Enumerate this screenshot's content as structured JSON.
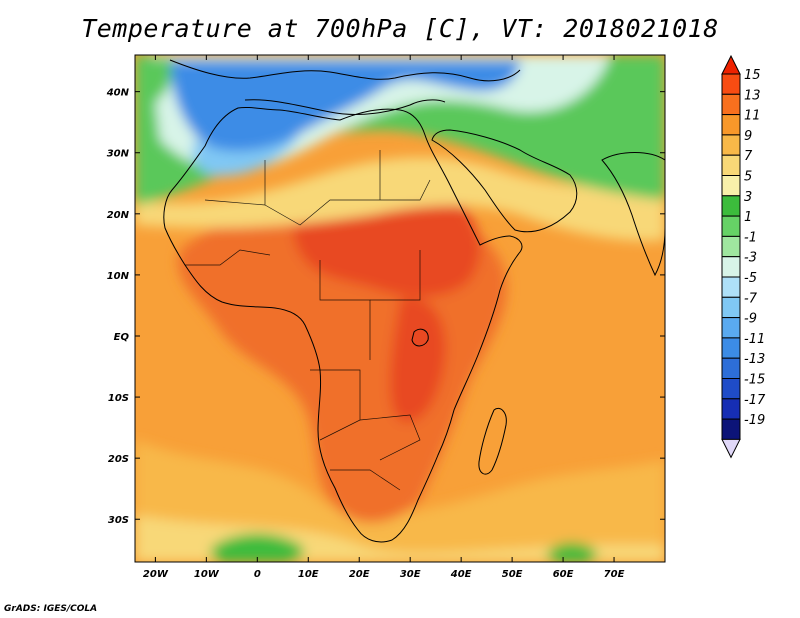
{
  "title": "Temperature at 700hPa [C], VT: 2018021018",
  "footer": "GrADS: IGES/COLA",
  "map": {
    "lon_range": [
      -24,
      80
    ],
    "lat_range": [
      -37,
      46
    ]
  },
  "axes": {
    "x_ticks": [
      {
        "value": -20,
        "label": "20W"
      },
      {
        "value": -10,
        "label": "10W"
      },
      {
        "value": 0,
        "label": "0"
      },
      {
        "value": 10,
        "label": "10E"
      },
      {
        "value": 20,
        "label": "20E"
      },
      {
        "value": 30,
        "label": "30E"
      },
      {
        "value": 40,
        "label": "40E"
      },
      {
        "value": 50,
        "label": "50E"
      },
      {
        "value": 60,
        "label": "60E"
      },
      {
        "value": 70,
        "label": "70E"
      }
    ],
    "y_ticks": [
      {
        "value": 40,
        "label": "40N"
      },
      {
        "value": 30,
        "label": "30N"
      },
      {
        "value": 20,
        "label": "20N"
      },
      {
        "value": 10,
        "label": "10N"
      },
      {
        "value": 0,
        "label": "EQ"
      },
      {
        "value": -10,
        "label": "10S"
      },
      {
        "value": -20,
        "label": "20S"
      },
      {
        "value": -30,
        "label": "30S"
      }
    ]
  },
  "colorbar": {
    "labels": [
      "15",
      "13",
      "11",
      "9",
      "7",
      "5",
      "3",
      "1",
      "-1",
      "-3",
      "-5",
      "-7",
      "-9",
      "-11",
      "-13",
      "-15",
      "-17",
      "-19"
    ],
    "colors": [
      "#ee2200",
      "#f84c12",
      "#f8701e",
      "#f8982a",
      "#f8b848",
      "#f8d877",
      "#f8f0aa",
      "#3cbc3c",
      "#66d266",
      "#9fe69f",
      "#d8f4e8",
      "#aee0f8",
      "#80c8f4",
      "#5aaaf0",
      "#3c8ce6",
      "#2d6ed8",
      "#1f4cc8",
      "#162eb4",
      "#0c1478",
      "#e0d8f8"
    ]
  },
  "regions": [
    {
      "name": "warm-southern-ocean",
      "color": "#f8a038"
    },
    {
      "name": "interior-africa",
      "color": "#f06f2a"
    },
    {
      "name": "sudan-hot-core",
      "color": "#e84a20"
    },
    {
      "name": "sahara-transition",
      "color": "#f8d878"
    },
    {
      "name": "north-africa-cool",
      "color": "#5ac85a"
    },
    {
      "name": "mediterranean-cold",
      "color": "#3c8ce6"
    }
  ]
}
